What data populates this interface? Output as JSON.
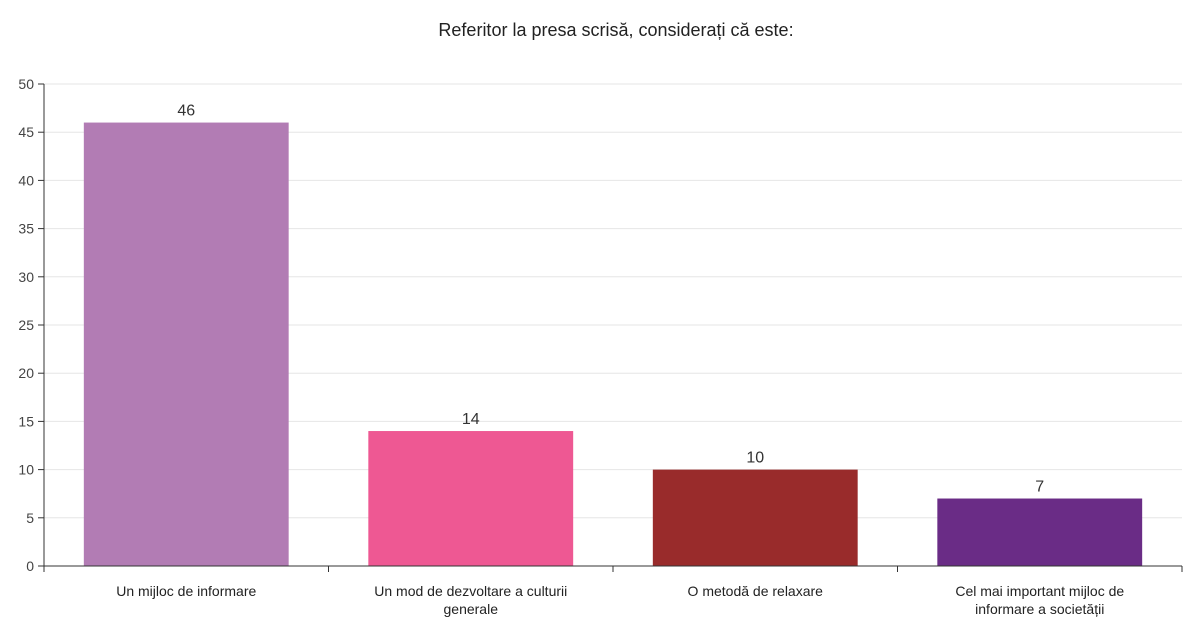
{
  "chart_data": {
    "type": "bar",
    "title": "Referitor la presa scrisă, considerați că este:",
    "xlabel": "",
    "ylabel": "",
    "ylim": [
      0,
      50
    ],
    "yticks": [
      0,
      5,
      10,
      15,
      20,
      25,
      30,
      35,
      40,
      45,
      50
    ],
    "grid": true,
    "legend": "none",
    "categories": [
      [
        "Un mijloc de informare"
      ],
      [
        "Un mod de dezvoltare a culturii",
        "generale"
      ],
      [
        "O metodă de relaxare"
      ],
      [
        "Cel mai important mijloc de",
        "informare a societății"
      ]
    ],
    "values": [
      46,
      14,
      10,
      7
    ],
    "colors": [
      "#b27cb4",
      "#ee5893",
      "#992b2b",
      "#6a2c86"
    ]
  }
}
